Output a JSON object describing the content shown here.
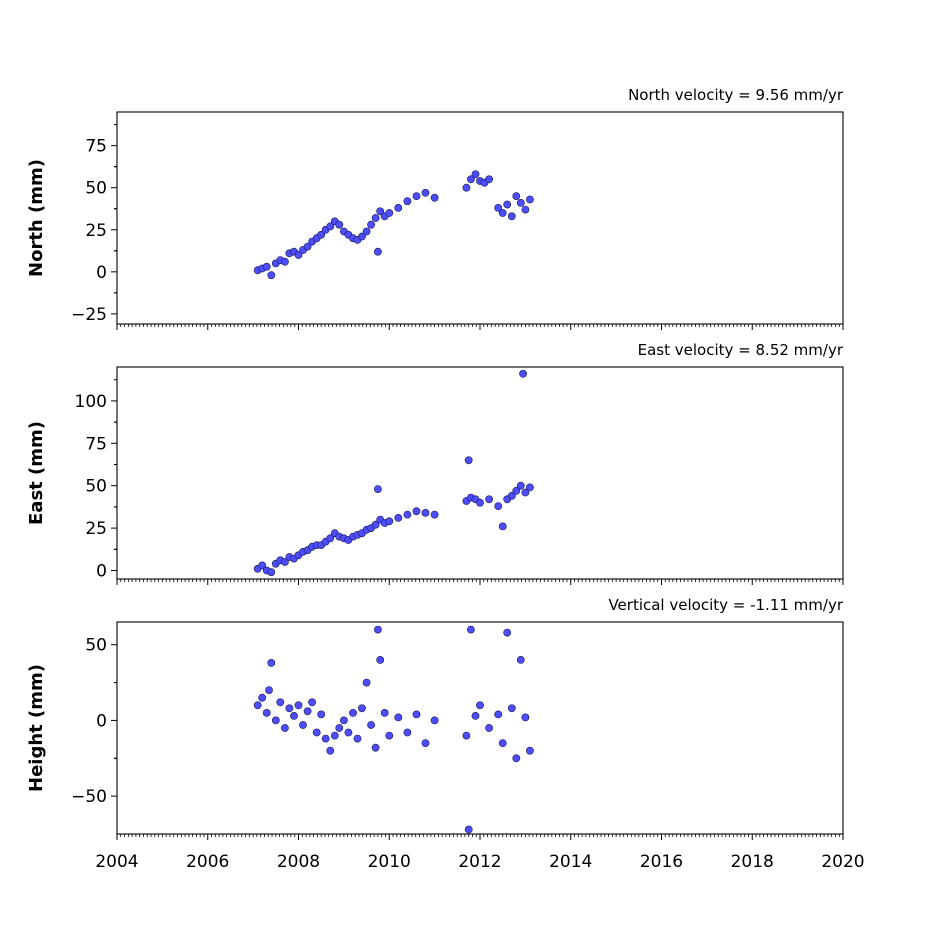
{
  "chart_data": [
    {
      "type": "scatter",
      "title": "North velocity = 9.56 mm/yr",
      "ylabel": "North (mm)",
      "xlabel": "",
      "xlim": [
        2004,
        2020
      ],
      "ylim": [
        -31,
        95
      ],
      "yticks": [
        -25,
        0,
        25,
        50,
        75
      ],
      "ytick_labels": [
        "−25",
        "0",
        "25",
        "50",
        "75"
      ],
      "xtick_labels": [],
      "marker_color": "#4d4dff",
      "marker_edge": "#1a1a4d",
      "series": [
        {
          "points": [
            [
              2007.1,
              1
            ],
            [
              2007.2,
              2
            ],
            [
              2007.3,
              3
            ],
            [
              2007.4,
              -2
            ],
            [
              2007.5,
              5
            ],
            [
              2007.6,
              7
            ],
            [
              2007.7,
              6
            ],
            [
              2007.8,
              11
            ],
            [
              2007.9,
              12
            ],
            [
              2008.0,
              10
            ],
            [
              2008.1,
              13
            ],
            [
              2008.2,
              15
            ],
            [
              2008.3,
              18
            ],
            [
              2008.4,
              20
            ],
            [
              2008.5,
              22
            ],
            [
              2008.6,
              25
            ],
            [
              2008.7,
              27
            ],
            [
              2008.8,
              30
            ],
            [
              2008.9,
              28
            ],
            [
              2009.0,
              24
            ],
            [
              2009.1,
              22
            ],
            [
              2009.2,
              20
            ],
            [
              2009.3,
              19
            ],
            [
              2009.4,
              21
            ],
            [
              2009.5,
              24
            ],
            [
              2009.6,
              28
            ],
            [
              2009.7,
              32
            ],
            [
              2009.75,
              12
            ],
            [
              2009.8,
              36
            ],
            [
              2009.9,
              33
            ],
            [
              2010.0,
              35
            ],
            [
              2010.2,
              38
            ],
            [
              2010.4,
              42
            ],
            [
              2010.6,
              45
            ],
            [
              2010.8,
              47
            ],
            [
              2011.0,
              44
            ],
            [
              2011.7,
              50
            ],
            [
              2011.8,
              55
            ],
            [
              2011.9,
              58
            ],
            [
              2012.0,
              54
            ],
            [
              2012.1,
              53
            ],
            [
              2012.2,
              55
            ],
            [
              2012.4,
              38
            ],
            [
              2012.5,
              35
            ],
            [
              2012.6,
              40
            ],
            [
              2012.7,
              33
            ],
            [
              2012.8,
              45
            ],
            [
              2012.9,
              41
            ],
            [
              2013.0,
              37
            ],
            [
              2013.1,
              43
            ]
          ]
        }
      ]
    },
    {
      "type": "scatter",
      "title": "East velocity = 8.52 mm/yr",
      "ylabel": "East (mm)",
      "xlabel": "",
      "xlim": [
        2004,
        2020
      ],
      "ylim": [
        -5,
        120
      ],
      "yticks": [
        0,
        25,
        50,
        75,
        100
      ],
      "ytick_labels": [
        "0",
        "25",
        "50",
        "75",
        "100"
      ],
      "xtick_labels": [],
      "marker_color": "#4d4dff",
      "marker_edge": "#1a1a4d",
      "series": [
        {
          "points": [
            [
              2007.1,
              1
            ],
            [
              2007.2,
              3
            ],
            [
              2007.3,
              0
            ],
            [
              2007.4,
              -1
            ],
            [
              2007.5,
              4
            ],
            [
              2007.6,
              6
            ],
            [
              2007.7,
              5
            ],
            [
              2007.8,
              8
            ],
            [
              2007.9,
              7
            ],
            [
              2008.0,
              9
            ],
            [
              2008.1,
              11
            ],
            [
              2008.2,
              12
            ],
            [
              2008.3,
              14
            ],
            [
              2008.4,
              15
            ],
            [
              2008.5,
              15
            ],
            [
              2008.6,
              17
            ],
            [
              2008.7,
              19
            ],
            [
              2008.8,
              22
            ],
            [
              2008.9,
              20
            ],
            [
              2009.0,
              19
            ],
            [
              2009.1,
              18
            ],
            [
              2009.2,
              20
            ],
            [
              2009.3,
              21
            ],
            [
              2009.4,
              22
            ],
            [
              2009.5,
              24
            ],
            [
              2009.6,
              25
            ],
            [
              2009.7,
              27
            ],
            [
              2009.75,
              48
            ],
            [
              2009.8,
              30
            ],
            [
              2009.9,
              28
            ],
            [
              2010.0,
              29
            ],
            [
              2010.2,
              31
            ],
            [
              2010.4,
              33
            ],
            [
              2010.6,
              35
            ],
            [
              2010.8,
              34
            ],
            [
              2011.0,
              33
            ],
            [
              2011.7,
              41
            ],
            [
              2011.75,
              65
            ],
            [
              2011.8,
              43
            ],
            [
              2011.9,
              42
            ],
            [
              2012.0,
              40
            ],
            [
              2012.2,
              42
            ],
            [
              2012.4,
              38
            ],
            [
              2012.5,
              26
            ],
            [
              2012.6,
              42
            ],
            [
              2012.7,
              44
            ],
            [
              2012.8,
              47
            ],
            [
              2012.9,
              50
            ],
            [
              2012.95,
              116
            ],
            [
              2013.0,
              46
            ],
            [
              2013.1,
              49
            ]
          ]
        }
      ]
    },
    {
      "type": "scatter",
      "title": "Vertical velocity = -1.11 mm/yr",
      "ylabel": "Height (mm)",
      "xlabel": "",
      "xlim": [
        2004,
        2020
      ],
      "ylim": [
        -75,
        65
      ],
      "yticks": [
        -50,
        0,
        50
      ],
      "ytick_labels": [
        "−50",
        "0",
        "50"
      ],
      "xticks": [
        2004,
        2006,
        2008,
        2010,
        2012,
        2014,
        2016,
        2018,
        2020
      ],
      "xtick_labels": [
        "2004",
        "2006",
        "2008",
        "2010",
        "2012",
        "2014",
        "2016",
        "2018",
        "2020"
      ],
      "marker_color": "#4d4dff",
      "marker_edge": "#1a1a4d",
      "series": [
        {
          "points": [
            [
              2007.1,
              10
            ],
            [
              2007.2,
              15
            ],
            [
              2007.3,
              5
            ],
            [
              2007.35,
              20
            ],
            [
              2007.4,
              38
            ],
            [
              2007.5,
              0
            ],
            [
              2007.6,
              12
            ],
            [
              2007.7,
              -5
            ],
            [
              2007.8,
              8
            ],
            [
              2007.9,
              3
            ],
            [
              2008.0,
              10
            ],
            [
              2008.1,
              -3
            ],
            [
              2008.2,
              6
            ],
            [
              2008.3,
              12
            ],
            [
              2008.4,
              -8
            ],
            [
              2008.5,
              4
            ],
            [
              2008.6,
              -12
            ],
            [
              2008.7,
              -20
            ],
            [
              2008.8,
              -10
            ],
            [
              2008.9,
              -5
            ],
            [
              2009.0,
              0
            ],
            [
              2009.1,
              -8
            ],
            [
              2009.2,
              5
            ],
            [
              2009.3,
              -12
            ],
            [
              2009.4,
              8
            ],
            [
              2009.5,
              25
            ],
            [
              2009.6,
              -3
            ],
            [
              2009.7,
              -18
            ],
            [
              2009.75,
              60
            ],
            [
              2009.8,
              40
            ],
            [
              2009.9,
              5
            ],
            [
              2010.0,
              -10
            ],
            [
              2010.2,
              2
            ],
            [
              2010.4,
              -8
            ],
            [
              2010.6,
              4
            ],
            [
              2010.8,
              -15
            ],
            [
              2011.0,
              0
            ],
            [
              2011.7,
              -10
            ],
            [
              2011.75,
              -72
            ],
            [
              2011.8,
              60
            ],
            [
              2011.9,
              3
            ],
            [
              2012.0,
              10
            ],
            [
              2012.2,
              -5
            ],
            [
              2012.4,
              4
            ],
            [
              2012.5,
              -15
            ],
            [
              2012.6,
              58
            ],
            [
              2012.7,
              8
            ],
            [
              2012.8,
              -25
            ],
            [
              2012.9,
              40
            ],
            [
              2013.0,
              2
            ],
            [
              2013.1,
              -20
            ]
          ]
        }
      ]
    }
  ]
}
